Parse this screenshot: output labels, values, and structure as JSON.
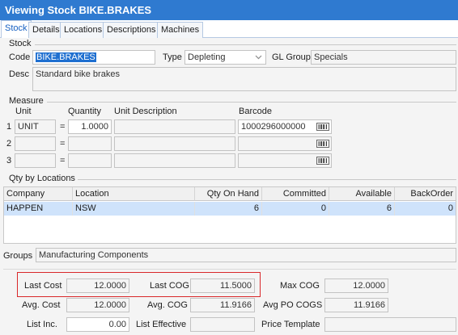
{
  "window": {
    "title": "Viewing Stock BIKE.BRAKES"
  },
  "tabs": [
    {
      "label": "Stock"
    },
    {
      "label": "Details"
    },
    {
      "label": "Locations"
    },
    {
      "label": "Descriptions"
    },
    {
      "label": "Machines"
    }
  ],
  "stock": {
    "group_label": "Stock",
    "code_label": "Code",
    "code_value": "BIKE.BRAKES",
    "type_label": "Type",
    "type_value": "Depleting",
    "gl_group_label": "GL Group",
    "gl_group_value": "Specials",
    "desc_label": "Desc",
    "desc_value": "Standard bike brakes"
  },
  "measure": {
    "group_label": "Measure",
    "headers": {
      "unit": "Unit",
      "quantity": "Quantity",
      "unit_description": "Unit Description",
      "barcode": "Barcode"
    },
    "rows": [
      {
        "num": "1",
        "unit": "UNIT",
        "eq": "=",
        "quantity": "1.0000",
        "unit_description": "",
        "barcode": "1000296000000"
      },
      {
        "num": "2",
        "unit": "",
        "eq": "=",
        "quantity": "",
        "unit_description": "",
        "barcode": ""
      },
      {
        "num": "3",
        "unit": "",
        "eq": "=",
        "quantity": "",
        "unit_description": "",
        "barcode": ""
      }
    ]
  },
  "qty_by_locations": {
    "group_label": "Qty by Locations",
    "columns": [
      "Company",
      "Location",
      "Qty On Hand",
      "Committed",
      "Available",
      "BackOrder"
    ],
    "rows": [
      {
        "company": "HAPPEN",
        "location": "NSW",
        "qty_on_hand": "6",
        "committed": "0",
        "available": "6",
        "backorder": "0"
      }
    ]
  },
  "groups": {
    "label": "Groups",
    "value": "Manufacturing Components"
  },
  "costs": {
    "last_cost_label": "Last Cost",
    "last_cost": "12.0000",
    "last_cog_label": "Last COG",
    "last_cog": "11.5000",
    "max_cog_label": "Max COG",
    "max_cog": "12.0000",
    "avg_cost_label": "Avg. Cost",
    "avg_cost": "12.0000",
    "avg_cog_label": "Avg. COG",
    "avg_cog": "11.9166",
    "avg_po_cogs_label": "Avg PO COGS",
    "avg_po_cogs": "11.9166",
    "list_inc_label": "List Inc.",
    "list_inc": "0.00",
    "list_effective_label": "List Effective",
    "list_effective": "",
    "price_template_label": "Price Template",
    "price_template": ""
  },
  "colors": {
    "titlebar": "#2f7ad0",
    "selected_row": "#cfe3fb",
    "highlight_border": "#d9282a",
    "active_tab_text": "#1660c2"
  },
  "icons": {
    "barcode": "barcode-icon",
    "dropdown": "chevron-down-icon"
  }
}
